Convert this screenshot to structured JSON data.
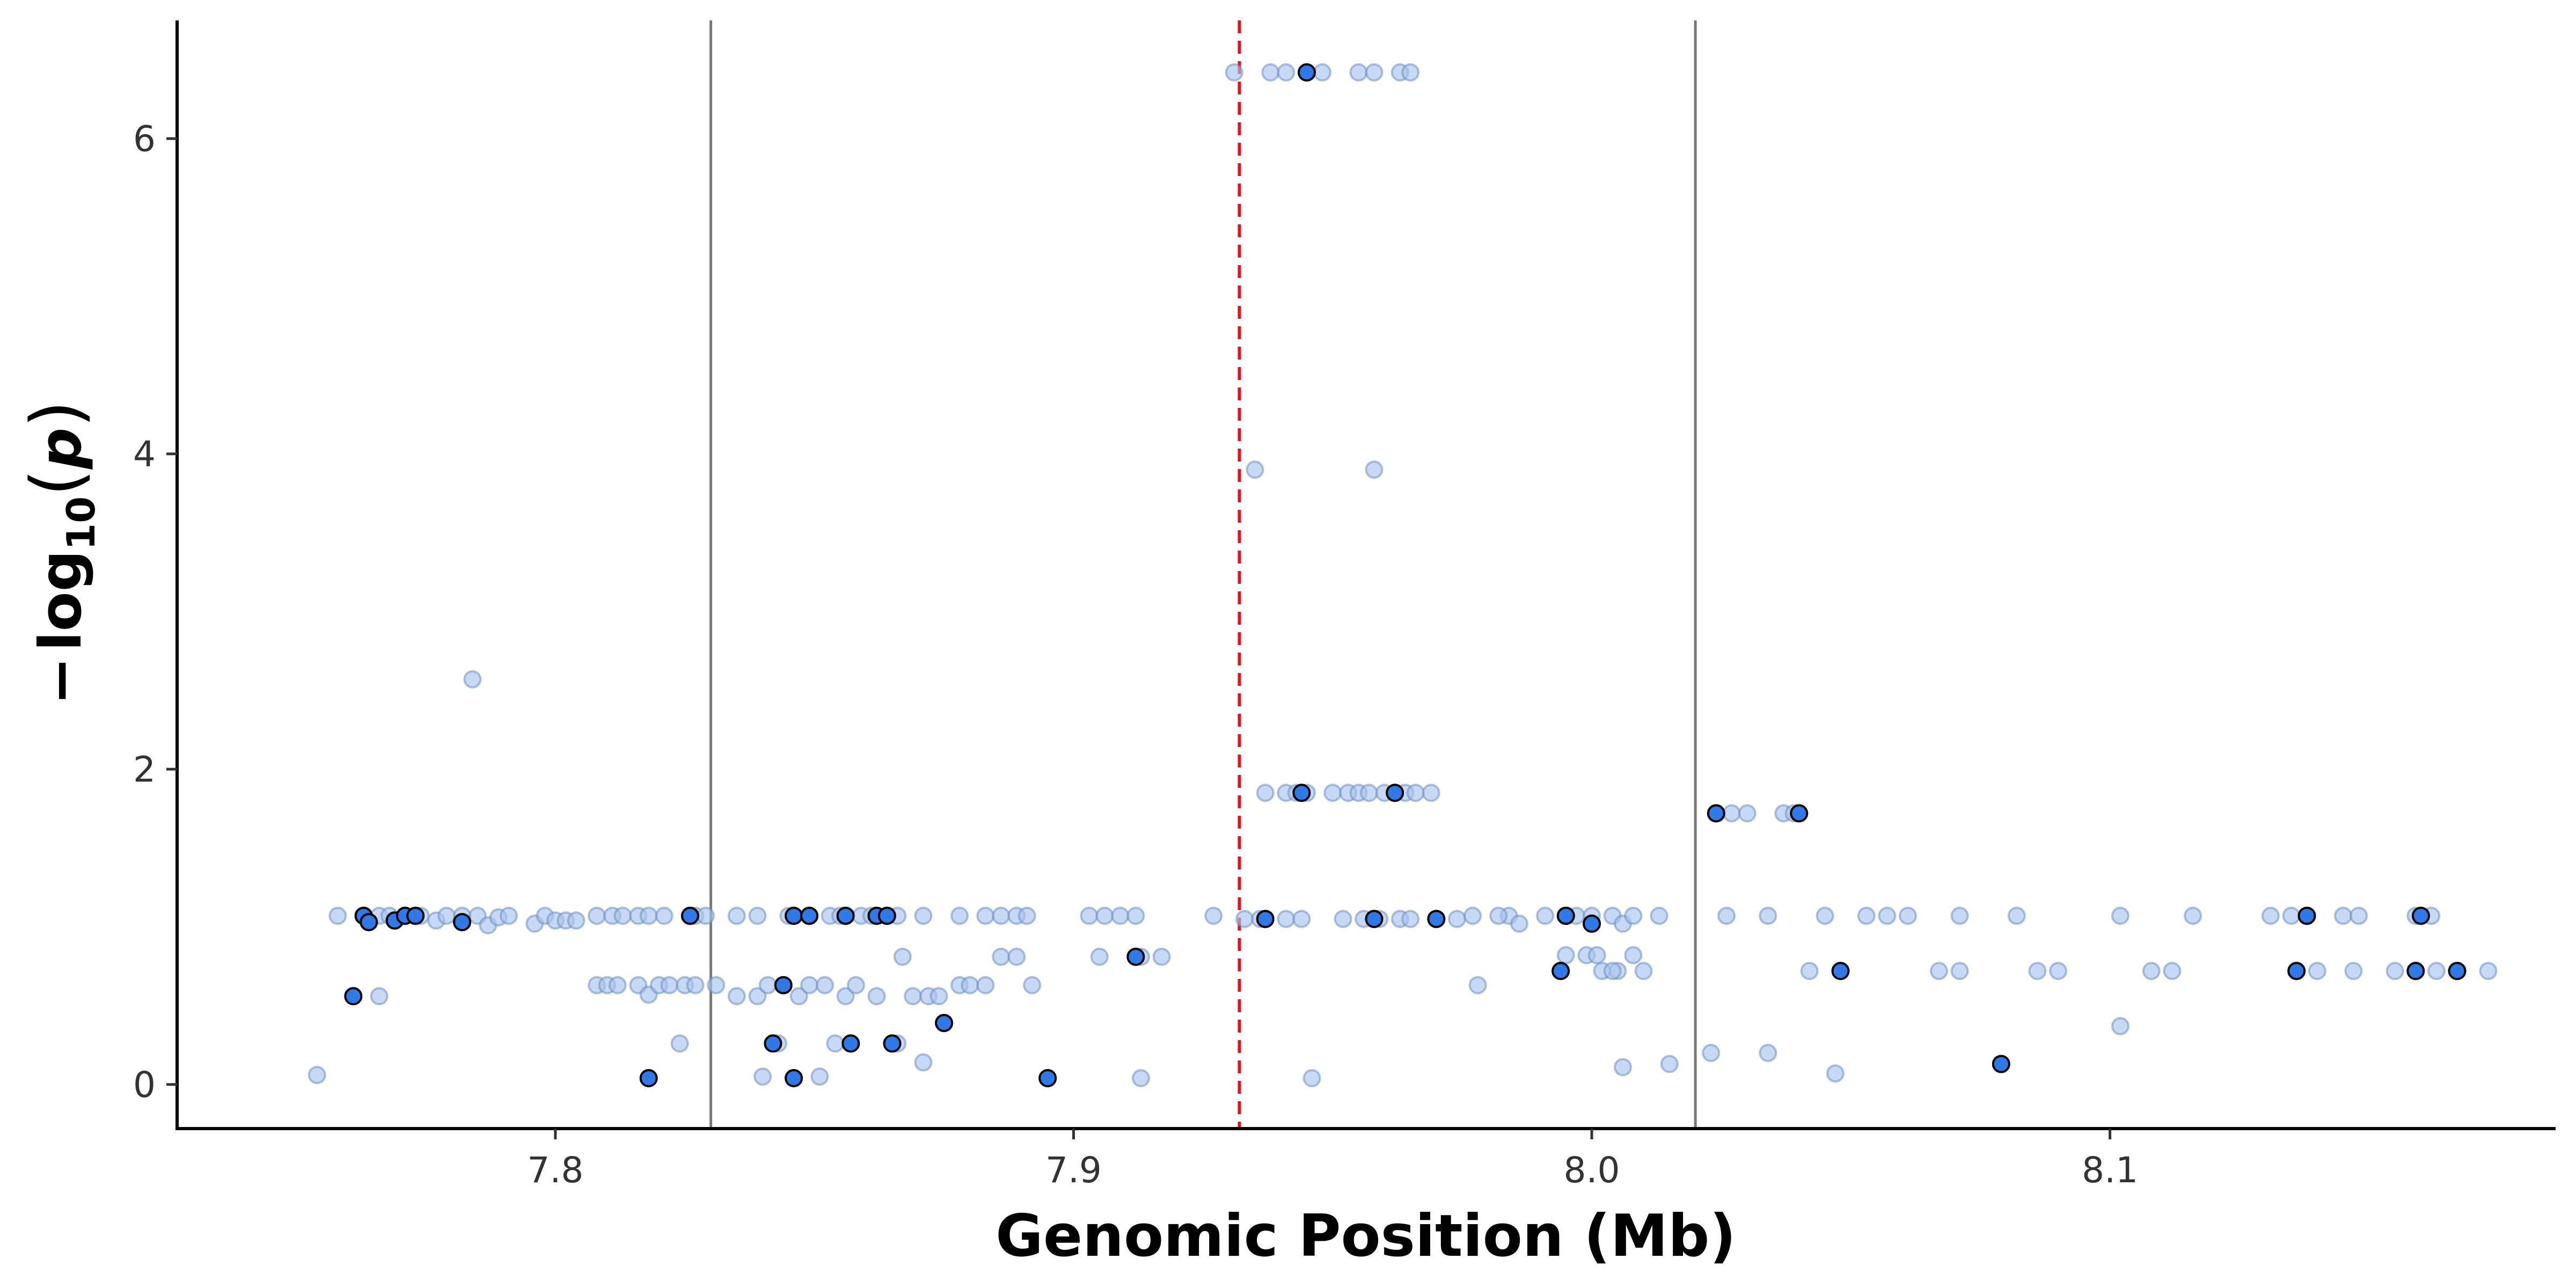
{
  "chart_data": {
    "type": "scatter",
    "title": "",
    "xlabel": "Genomic Position (Mb)",
    "ylabel_parts": {
      "minus": "−",
      "log": "log",
      "sub": "10",
      "open": "(",
      "p": "p",
      "close": ")"
    },
    "xlim": [
      7.727,
      8.186
    ],
    "ylim": [
      -0.28,
      6.75
    ],
    "x_ticks": [
      {
        "value": 7.8,
        "label": "7.8"
      },
      {
        "value": 7.9,
        "label": "7.9"
      },
      {
        "value": 8.0,
        "label": "8.0"
      },
      {
        "value": 8.1,
        "label": "8.1"
      }
    ],
    "y_ticks": [
      {
        "value": 0,
        "label": "0"
      },
      {
        "value": 2,
        "label": "2"
      },
      {
        "value": 4,
        "label": "4"
      },
      {
        "value": 6,
        "label": "6"
      }
    ],
    "grid": false,
    "reference_lines": [
      {
        "x": 7.83,
        "style": "solid",
        "color": "#7a7a7a"
      },
      {
        "x": 7.932,
        "style": "dashed",
        "color": "#e0141e"
      },
      {
        "x": 8.02,
        "style": "solid",
        "color": "#7a7a7a"
      }
    ],
    "colors": {
      "faint": "#a9c4ee",
      "bold": "#2f7ae6",
      "bold_edge": "#000000"
    },
    "series": [
      {
        "style": "faint",
        "points": [
          [
            7.754,
            0.06
          ],
          [
            7.784,
            2.57
          ],
          [
            7.758,
            1.07
          ],
          [
            7.763,
            1.07
          ],
          [
            7.766,
            1.07
          ],
          [
            7.768,
            1.07
          ],
          [
            7.771,
            1.07
          ],
          [
            7.774,
            1.07
          ],
          [
            7.777,
            1.04
          ],
          [
            7.779,
            1.07
          ],
          [
            7.782,
            1.07
          ],
          [
            7.785,
            1.07
          ],
          [
            7.787,
            1.01
          ],
          [
            7.789,
            1.06
          ],
          [
            7.791,
            1.07
          ],
          [
            7.796,
            1.02
          ],
          [
            7.798,
            1.07
          ],
          [
            7.8,
            1.04
          ],
          [
            7.802,
            1.04
          ],
          [
            7.804,
            1.04
          ],
          [
            7.808,
            1.07
          ],
          [
            7.811,
            1.07
          ],
          [
            7.813,
            1.07
          ],
          [
            7.816,
            1.07
          ],
          [
            7.818,
            1.07
          ],
          [
            7.821,
            1.07
          ],
          [
            7.827,
            1.07
          ],
          [
            7.829,
            1.07
          ],
          [
            7.766,
            0.56
          ],
          [
            7.808,
            0.63
          ],
          [
            7.81,
            0.63
          ],
          [
            7.812,
            0.63
          ],
          [
            7.816,
            0.63
          ],
          [
            7.818,
            0.57
          ],
          [
            7.82,
            0.63
          ],
          [
            7.822,
            0.63
          ],
          [
            7.825,
            0.63
          ],
          [
            7.827,
            0.63
          ],
          [
            7.831,
            0.63
          ],
          [
            7.824,
            0.26
          ],
          [
            7.835,
            0.56
          ],
          [
            7.839,
            0.56
          ],
          [
            7.841,
            0.63
          ],
          [
            7.843,
            0.26
          ],
          [
            7.847,
            0.56
          ],
          [
            7.849,
            0.63
          ],
          [
            7.852,
            0.63
          ],
          [
            7.854,
            0.26
          ],
          [
            7.856,
            0.56
          ],
          [
            7.858,
            0.63
          ],
          [
            7.862,
            0.56
          ],
          [
            7.866,
            0.26
          ],
          [
            7.867,
            0.81
          ],
          [
            7.869,
            0.56
          ],
          [
            7.872,
            0.56
          ],
          [
            7.874,
            0.56
          ],
          [
            7.878,
            0.63
          ],
          [
            7.88,
            0.63
          ],
          [
            7.883,
            0.63
          ],
          [
            7.886,
            0.81
          ],
          [
            7.889,
            0.81
          ],
          [
            7.892,
            0.63
          ],
          [
            7.905,
            0.81
          ],
          [
            7.913,
            0.81
          ],
          [
            7.917,
            0.81
          ],
          [
            7.871,
            0.14
          ],
          [
            7.84,
            0.05
          ],
          [
            7.851,
            0.05
          ],
          [
            7.913,
            0.04
          ],
          [
            7.835,
            1.07
          ],
          [
            7.839,
            1.07
          ],
          [
            7.845,
            1.07
          ],
          [
            7.849,
            1.07
          ],
          [
            7.853,
            1.07
          ],
          [
            7.855,
            1.07
          ],
          [
            7.859,
            1.07
          ],
          [
            7.861,
            1.07
          ],
          [
            7.866,
            1.07
          ],
          [
            7.871,
            1.07
          ],
          [
            7.878,
            1.07
          ],
          [
            7.883,
            1.07
          ],
          [
            7.886,
            1.07
          ],
          [
            7.889,
            1.07
          ],
          [
            7.891,
            1.07
          ],
          [
            7.903,
            1.07
          ],
          [
            7.906,
            1.07
          ],
          [
            7.909,
            1.07
          ],
          [
            7.912,
            1.07
          ],
          [
            7.927,
            1.07
          ],
          [
            7.931,
            6.42
          ],
          [
            7.938,
            6.42
          ],
          [
            7.941,
            6.42
          ],
          [
            7.948,
            6.42
          ],
          [
            7.955,
            6.42
          ],
          [
            7.958,
            6.42
          ],
          [
            7.963,
            6.42
          ],
          [
            7.965,
            6.42
          ],
          [
            7.935,
            3.9
          ],
          [
            7.958,
            3.9
          ],
          [
            7.937,
            1.85
          ],
          [
            7.941,
            1.85
          ],
          [
            7.943,
            1.85
          ],
          [
            7.945,
            1.85
          ],
          [
            7.95,
            1.85
          ],
          [
            7.953,
            1.85
          ],
          [
            7.955,
            1.85
          ],
          [
            7.957,
            1.85
          ],
          [
            7.96,
            1.85
          ],
          [
            7.962,
            1.85
          ],
          [
            7.964,
            1.85
          ],
          [
            7.966,
            1.85
          ],
          [
            7.969,
            1.85
          ],
          [
            7.933,
            1.05
          ],
          [
            7.936,
            1.05
          ],
          [
            7.941,
            1.05
          ],
          [
            7.944,
            1.05
          ],
          [
            7.952,
            1.05
          ],
          [
            7.956,
            1.05
          ],
          [
            7.959,
            1.05
          ],
          [
            7.963,
            1.05
          ],
          [
            7.965,
            1.05
          ],
          [
            7.974,
            1.05
          ],
          [
            7.977,
            1.07
          ],
          [
            7.984,
            1.07
          ],
          [
            7.986,
            1.02
          ],
          [
            7.991,
            1.07
          ],
          [
            7.995,
            1.07
          ],
          [
            7.997,
            1.07
          ],
          [
            8.0,
            1.07
          ],
          [
            8.004,
            1.07
          ],
          [
            8.006,
            1.02
          ],
          [
            8.008,
            1.07
          ],
          [
            8.013,
            1.07
          ],
          [
            7.982,
            1.07
          ],
          [
            7.978,
            0.63
          ],
          [
            7.995,
            0.82
          ],
          [
            7.999,
            0.82
          ],
          [
            8.001,
            0.82
          ],
          [
            8.005,
            0.72
          ],
          [
            8.008,
            0.82
          ],
          [
            8.002,
            0.72
          ],
          [
            8.004,
            0.72
          ],
          [
            8.01,
            0.72
          ],
          [
            7.946,
            0.04
          ],
          [
            8.006,
            0.11
          ],
          [
            8.015,
            0.13
          ],
          [
            8.027,
            1.72
          ],
          [
            8.03,
            1.72
          ],
          [
            8.037,
            1.72
          ],
          [
            8.039,
            1.72
          ],
          [
            8.026,
            1.07
          ],
          [
            8.034,
            1.07
          ],
          [
            8.045,
            1.07
          ],
          [
            8.053,
            1.07
          ],
          [
            8.057,
            1.07
          ],
          [
            8.061,
            1.07
          ],
          [
            8.071,
            1.07
          ],
          [
            8.082,
            1.07
          ],
          [
            8.102,
            1.07
          ],
          [
            8.116,
            1.07
          ],
          [
            8.131,
            1.07
          ],
          [
            8.135,
            1.07
          ],
          [
            8.145,
            1.07
          ],
          [
            8.148,
            1.07
          ],
          [
            8.159,
            1.07
          ],
          [
            8.162,
            1.07
          ],
          [
            8.042,
            0.72
          ],
          [
            8.067,
            0.72
          ],
          [
            8.071,
            0.72
          ],
          [
            8.086,
            0.72
          ],
          [
            8.09,
            0.72
          ],
          [
            8.108,
            0.72
          ],
          [
            8.112,
            0.72
          ],
          [
            8.14,
            0.72
          ],
          [
            8.147,
            0.72
          ],
          [
            8.155,
            0.72
          ],
          [
            8.163,
            0.72
          ],
          [
            8.173,
            0.72
          ],
          [
            8.102,
            0.37
          ],
          [
            8.023,
            0.2
          ],
          [
            8.034,
            0.2
          ],
          [
            8.047,
            0.07
          ]
        ]
      },
      {
        "style": "bold",
        "points": [
          [
            7.761,
            0.56
          ],
          [
            7.763,
            1.07
          ],
          [
            7.764,
            1.03
          ],
          [
            7.769,
            1.04
          ],
          [
            7.771,
            1.07
          ],
          [
            7.773,
            1.07
          ],
          [
            7.782,
            1.03
          ],
          [
            7.826,
            1.07
          ],
          [
            7.818,
            0.04
          ],
          [
            7.842,
            0.26
          ],
          [
            7.844,
            0.63
          ],
          [
            7.846,
            1.07
          ],
          [
            7.849,
            1.07
          ],
          [
            7.846,
            0.04
          ],
          [
            7.857,
            0.26
          ],
          [
            7.856,
            1.07
          ],
          [
            7.862,
            1.07
          ],
          [
            7.864,
            1.07
          ],
          [
            7.865,
            0.26
          ],
          [
            7.875,
            0.39
          ],
          [
            7.895,
            0.04
          ],
          [
            7.912,
            0.81
          ],
          [
            7.945,
            6.42
          ],
          [
            7.937,
            1.05
          ],
          [
            7.944,
            1.85
          ],
          [
            7.962,
            1.85
          ],
          [
            7.958,
            1.05
          ],
          [
            7.97,
            1.05
          ],
          [
            7.994,
            0.72
          ],
          [
            7.995,
            1.07
          ],
          [
            8.0,
            1.02
          ],
          [
            8.024,
            1.72
          ],
          [
            8.04,
            1.72
          ],
          [
            8.048,
            0.72
          ],
          [
            8.079,
            0.13
          ],
          [
            8.136,
            0.72
          ],
          [
            8.138,
            1.07
          ],
          [
            8.16,
            1.07
          ],
          [
            8.159,
            0.72
          ],
          [
            8.167,
            0.72
          ]
        ]
      }
    ]
  }
}
